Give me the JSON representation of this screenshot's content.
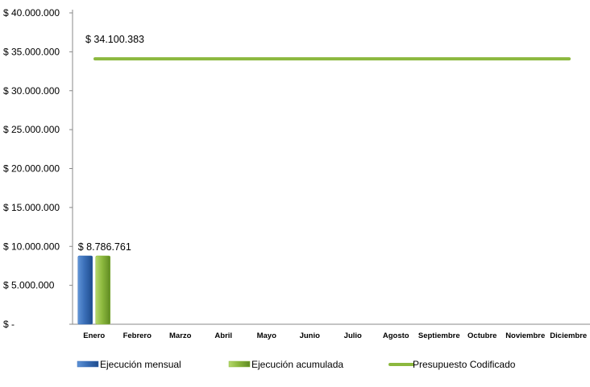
{
  "chart_data": {
    "type": "bar",
    "categories": [
      "Enero",
      "Febrero",
      "Marzo",
      "Abril",
      "Mayo",
      "Junio",
      "Julio",
      "Agosto",
      "Septiembre",
      "Octubre",
      "Noviembre",
      "Diciembre"
    ],
    "series": [
      {
        "name": "Ejecución mensual",
        "kind": "bar",
        "color": "#3a6fb8",
        "values": [
          8786761,
          null,
          null,
          null,
          null,
          null,
          null,
          null,
          null,
          null,
          null,
          null
        ]
      },
      {
        "name": "Ejecución acumulada",
        "kind": "bar",
        "color": "#8cb83e",
        "values": [
          8786761,
          null,
          null,
          null,
          null,
          null,
          null,
          null,
          null,
          null,
          null,
          null
        ]
      },
      {
        "name": "Presupuesto Codificado",
        "kind": "line",
        "color": "#8cb83e",
        "values": [
          34100383,
          34100383,
          34100383,
          34100383,
          34100383,
          34100383,
          34100383,
          34100383,
          34100383,
          34100383,
          34100383,
          34100383
        ]
      }
    ],
    "data_labels": [
      {
        "series": "Ejecución mensual",
        "category": "Enero",
        "text": "$ 8.786.761"
      },
      {
        "series": "Presupuesto Codificado",
        "category": "Enero",
        "text": "$ 34.100.383"
      }
    ],
    "y_ticks": [
      {
        "value": 0,
        "label": "$ -"
      },
      {
        "value": 5000000,
        "label": "$ 5.000.000"
      },
      {
        "value": 10000000,
        "label": "$ 10.000.000"
      },
      {
        "value": 15000000,
        "label": "$ 15.000.000"
      },
      {
        "value": 20000000,
        "label": "$ 20.000.000"
      },
      {
        "value": 25000000,
        "label": "$ 25.000.000"
      },
      {
        "value": 30000000,
        "label": "$ 30.000.000"
      },
      {
        "value": 35000000,
        "label": "$ 35.000.000"
      },
      {
        "value": 40000000,
        "label": "$ 40.000.000"
      }
    ],
    "ylim": [
      0,
      40000000
    ],
    "grid": false,
    "legend_position": "bottom",
    "title": "",
    "xlabel": "",
    "ylabel": ""
  }
}
